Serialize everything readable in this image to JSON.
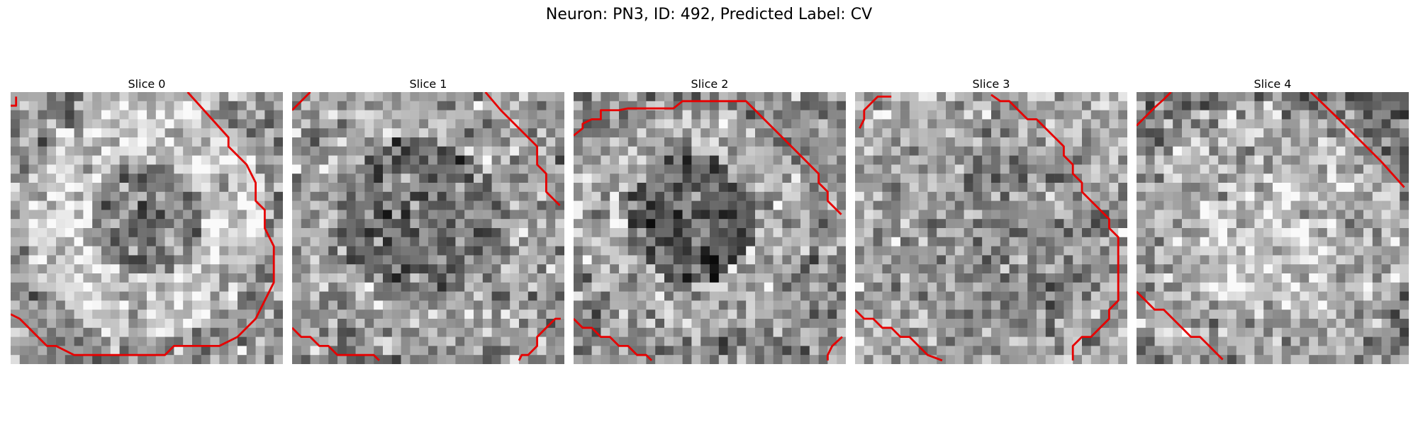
{
  "figure": {
    "title": "Neuron: PN3, ID: 492, Predicted Label: CV",
    "outline_color": "#e60000",
    "colormap": "gray",
    "slices": [
      {
        "title": "Slice 0"
      },
      {
        "title": "Slice 1"
      },
      {
        "title": "Slice 2"
      },
      {
        "title": "Slice 3"
      },
      {
        "title": "Slice 4"
      }
    ]
  }
}
